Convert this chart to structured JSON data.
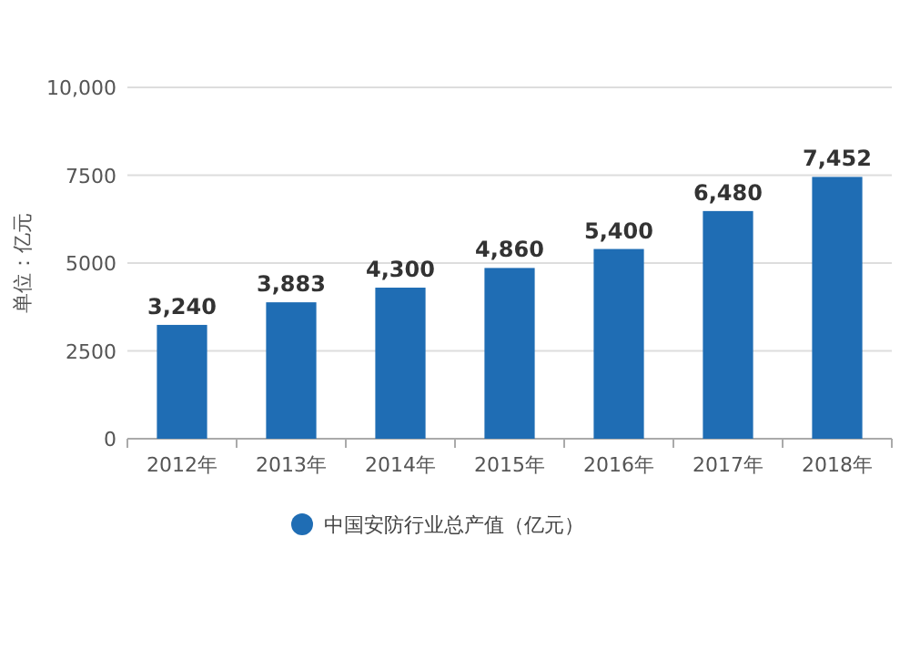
{
  "chart_data": {
    "type": "bar",
    "ylabel": "单位：亿元",
    "categories": [
      "2012年",
      "2013年",
      "2014年",
      "2015年",
      "2016年",
      "2017年",
      "2018年"
    ],
    "series": [
      {
        "name": "中国安防行业总产值（亿元）",
        "color": "#1f6db4",
        "values": [
          3240,
          3883,
          4300,
          4860,
          5400,
          6480,
          7452
        ],
        "value_labels": [
          "3,240",
          "3,883",
          "4,300",
          "4,860",
          "5,400",
          "6,480",
          "7,452"
        ]
      }
    ],
    "ylim": [
      0,
      10000
    ],
    "yticks": [
      0,
      2500,
      5000,
      7500,
      {
        "value": 10000,
        "label": "10,000"
      }
    ],
    "grid": "y",
    "legend": "bottom"
  }
}
